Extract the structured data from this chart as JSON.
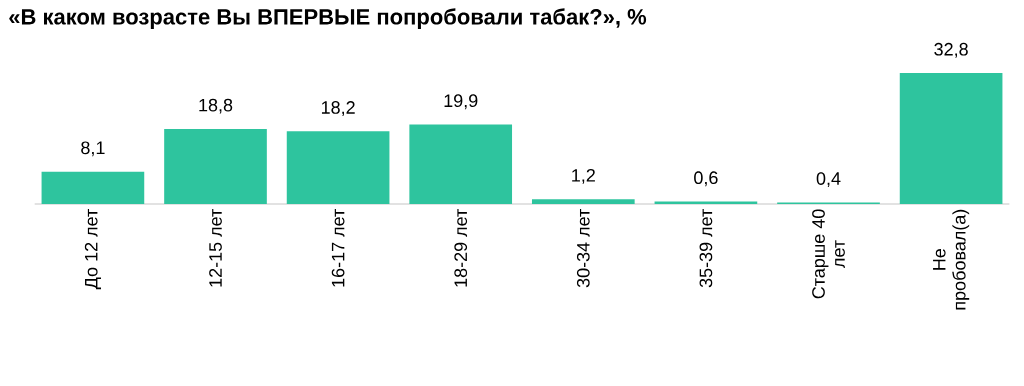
{
  "chart_data": {
    "type": "bar",
    "title": "«В каком возрасте Вы ВПЕРВЫЕ попробовали табак?», %",
    "categories": [
      "До 12 лет",
      "12-15 лет",
      "16-17 лет",
      "18-29 лет",
      "30-34 лет",
      "35-39 лет",
      "Старше 40 лет",
      "Не пробовал(а)"
    ],
    "values": [
      8.1,
      18.8,
      18.2,
      19.9,
      1.2,
      0.6,
      0.4,
      32.8
    ],
    "value_labels": [
      "8,1",
      "18,8",
      "18,2",
      "19,9",
      "1,2",
      "0,6",
      "0,4",
      "32,8"
    ],
    "color": "#2ec49e"
  }
}
